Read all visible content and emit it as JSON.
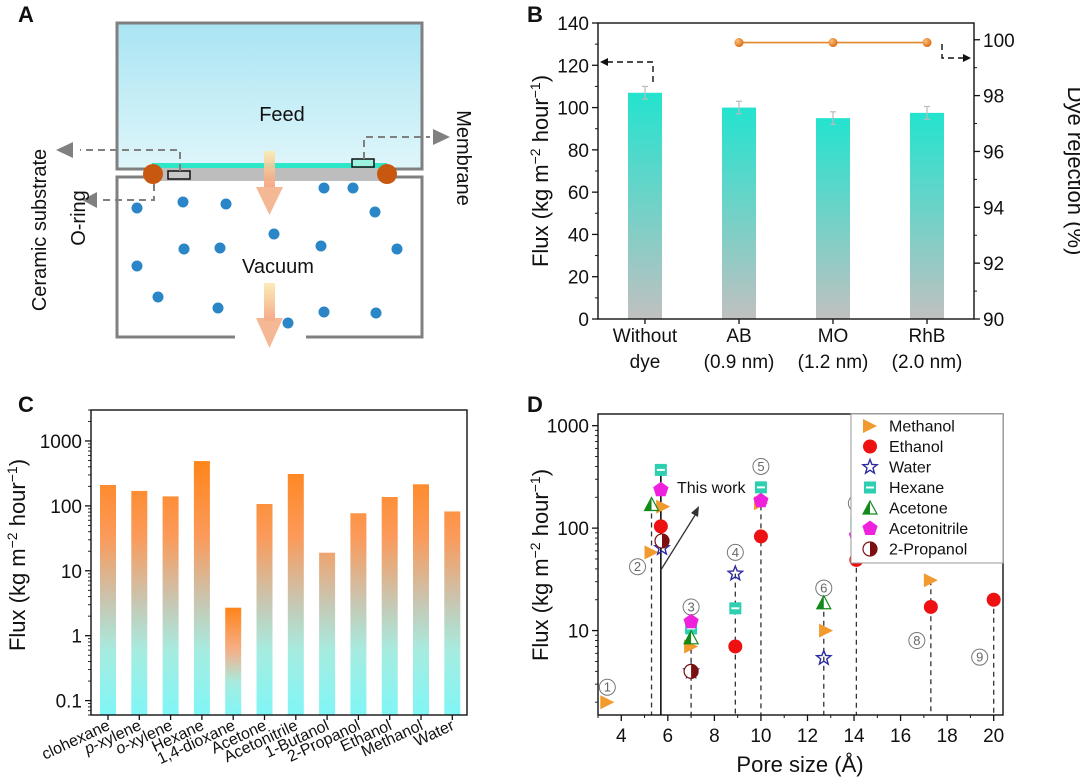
{
  "panels": {
    "A": "A",
    "B": "B",
    "C": "C",
    "D": "D"
  },
  "diagram": {
    "feed_label": "Feed",
    "vacuum_label": "Vacuum",
    "ceramic_label": "Ceramic substrate",
    "oring_label": "O-ring",
    "membrane_label": "Membrane",
    "colors": {
      "feed_top": "#a9e4f3",
      "feed_bottom": "#dff6fa",
      "membrane": "#2de8c8",
      "substrate": "#bdbdbd",
      "oring": "#c8580f",
      "molecule": "#2a86c6",
      "arrow": "#f4b08a",
      "wall": "#808080"
    }
  },
  "chart_data": [
    {
      "panel": "B",
      "type": "bar",
      "title": "",
      "categories": [
        "Without\ndye",
        "AB\n(0.9 nm)",
        "MO\n(1.2 nm)",
        "RhB\n(2.0 nm)"
      ],
      "category_lines": [
        [
          "Without",
          "dye"
        ],
        [
          "AB",
          "(0.9 nm)"
        ],
        [
          "MO",
          "(1.2 nm)"
        ],
        [
          "RhB",
          "(2.0 nm)"
        ]
      ],
      "series": [
        {
          "name": "Flux",
          "axis": "left",
          "values": [
            107,
            100,
            95,
            97.5
          ],
          "errors": [
            3,
            3,
            3,
            3
          ]
        },
        {
          "name": "Dye rejection",
          "axis": "right",
          "type": "line",
          "categories_index": [
            1,
            2,
            3
          ],
          "values": [
            99.9,
            99.9,
            99.9
          ]
        }
      ],
      "ylabel": "Flux (kg m⁻² hour⁻¹)",
      "ylabel_parts": [
        "Flux (kg m",
        "−2",
        " hour",
        "−1",
        ")"
      ],
      "ylim": [
        0,
        140
      ],
      "yticks": [
        0,
        20,
        40,
        60,
        80,
        100,
        120,
        140
      ],
      "y2label": "Dye rejection (%)",
      "y2lim": [
        90,
        100.6
      ],
      "y2ticks": [
        90,
        92,
        94,
        96,
        98,
        100
      ],
      "colors": {
        "bar_top": "#23e3cf",
        "bar_bottom": "#c0c0c0",
        "line": "#e0882a",
        "marker": "#e8801f"
      }
    },
    {
      "panel": "C",
      "type": "bar",
      "scale": "log",
      "categories": [
        "clohexane",
        "p-xylene",
        "o-xylene",
        "Hexane",
        "1,4-dioxane",
        "Acetone",
        "Acetonitrile",
        "1-Butanol",
        "2-Propanol",
        "Ethanol",
        "Methanol",
        "Water"
      ],
      "values": [
        210,
        170,
        140,
        490,
        2.7,
        107,
        310,
        19,
        77,
        137,
        215,
        82
      ],
      "ylabel": "Flux (kg m⁻² hour⁻¹)",
      "ylabel_parts": [
        "Flux (kg m",
        "−2",
        " hour",
        "−1",
        ")"
      ],
      "ylim": [
        0.06,
        3000
      ],
      "yticks": [
        0.1,
        1,
        10,
        100,
        1000
      ],
      "ytick_labels": [
        "0.1",
        "1",
        "10",
        "100",
        "1000"
      ],
      "colors": {
        "bar_top": "#ff8419",
        "bar_bottom": "#80f6f6"
      }
    },
    {
      "panel": "D",
      "type": "scatter",
      "scale": "log",
      "xlabel": "Pore size  (Å)",
      "ylabel": "Flux (kg m⁻² hour⁻¹)",
      "ylabel_parts": [
        "Flux (kg m",
        "−2",
        " hour",
        "−1",
        ")"
      ],
      "xlim": [
        3,
        20.4
      ],
      "xticks": [
        4,
        6,
        8,
        10,
        12,
        14,
        16,
        18,
        20
      ],
      "ylim": [
        1.5,
        1300
      ],
      "yticks": [
        10,
        100,
        1000
      ],
      "ytick_labels": [
        "10",
        "100",
        "1000"
      ],
      "legend_position": "top-right",
      "annotation": "This work",
      "this_work_x": 5.7,
      "series": [
        {
          "name": "Methanol",
          "marker": "triangle-right",
          "color": "#f29a2e",
          "points": [
            [
              3.4,
              2
            ],
            [
              5.3,
              58
            ],
            [
              5.8,
              162
            ],
            [
              7.0,
              7
            ],
            [
              10.0,
              175
            ],
            [
              12.8,
              10
            ],
            [
              17.3,
              31
            ]
          ]
        },
        {
          "name": "Ethanol",
          "marker": "circle",
          "color": "#ee1111",
          "points": [
            [
              5.7,
              104
            ],
            [
              8.9,
              7
            ],
            [
              10.0,
              83
            ],
            [
              14.1,
              49
            ],
            [
              17.3,
              17
            ],
            [
              20.0,
              20
            ]
          ]
        },
        {
          "name": "Water",
          "marker": "star-open",
          "color": "#2b2ba0",
          "points": [
            [
              5.75,
              64
            ],
            [
              7.0,
              4
            ],
            [
              8.9,
              36
            ],
            [
              12.7,
              5.4
            ]
          ]
        },
        {
          "name": "Hexane",
          "marker": "square-half",
          "color": "#2ccfb0",
          "points": [
            [
              5.7,
              370
            ],
            [
              7.0,
              10.5
            ],
            [
              8.9,
              16.5
            ],
            [
              10.0,
              250
            ],
            [
              14.1,
              113
            ]
          ]
        },
        {
          "name": "Acetone",
          "marker": "triangle-half",
          "color": "#128a1a",
          "points": [
            [
              5.3,
              170
            ],
            [
              7.0,
              8.5
            ],
            [
              12.7,
              18.7
            ]
          ]
        },
        {
          "name": "Acetonitrile",
          "marker": "pentagon",
          "color": "#ee22dd",
          "points": [
            [
              5.7,
              237
            ],
            [
              7.0,
              12.2
            ],
            [
              10.0,
              185
            ],
            [
              14.1,
              84
            ]
          ]
        },
        {
          "name": "2-Propanol",
          "marker": "circle-half",
          "color": "#7a1010",
          "points": [
            [
              5.75,
              75
            ],
            [
              7.0,
              4
            ]
          ]
        }
      ],
      "reference_lines": [
        {
          "label": "①",
          "x": 3.4,
          "label_value": 2.8
        },
        {
          "label": "②",
          "x": 5.3,
          "label_value": 42
        },
        {
          "label": "③",
          "x": 7.0,
          "label_value": 17
        },
        {
          "label": "④",
          "x": 8.9,
          "label_value": 58
        },
        {
          "label": "⑤",
          "x": 10.0,
          "label_value": 400
        },
        {
          "label": "⑥",
          "x": 12.7,
          "label_value": 26
        },
        {
          "label": "⑦",
          "x": 14.1,
          "label_value": 175
        },
        {
          "label": "⑧",
          "x": 17.3,
          "label_value": 8
        },
        {
          "label": "⑨",
          "x": 20.0,
          "label_value": 5.5
        }
      ]
    }
  ]
}
